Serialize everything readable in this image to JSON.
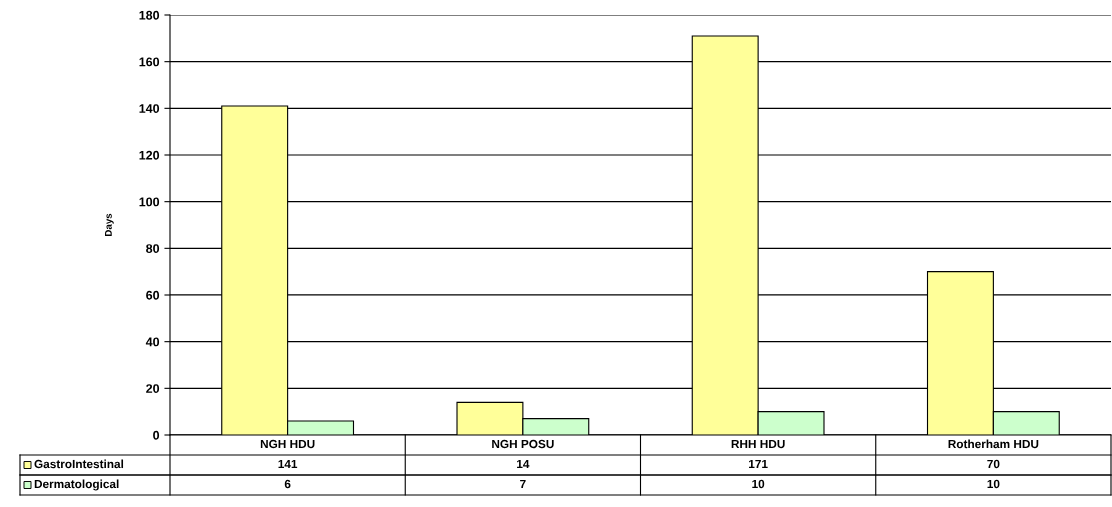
{
  "chart_data": {
    "type": "bar",
    "ylabel": "Days",
    "categories": [
      "NGH HDU",
      "NGH POSU",
      "RHH HDU",
      "Rotherham HDU"
    ],
    "series": [
      {
        "name": "GastroIntestinal",
        "color": "#ffff99",
        "values": [
          141,
          14,
          171,
          70
        ]
      },
      {
        "name": "Dermatological",
        "color": "#ccffcc",
        "values": [
          6,
          7,
          10,
          10
        ]
      }
    ],
    "ylim": [
      0,
      180
    ],
    "yticks": [
      0,
      20,
      40,
      60,
      80,
      100,
      120,
      140,
      160,
      180
    ],
    "grid": "y",
    "data_labels": true,
    "legend": "bottom left"
  }
}
